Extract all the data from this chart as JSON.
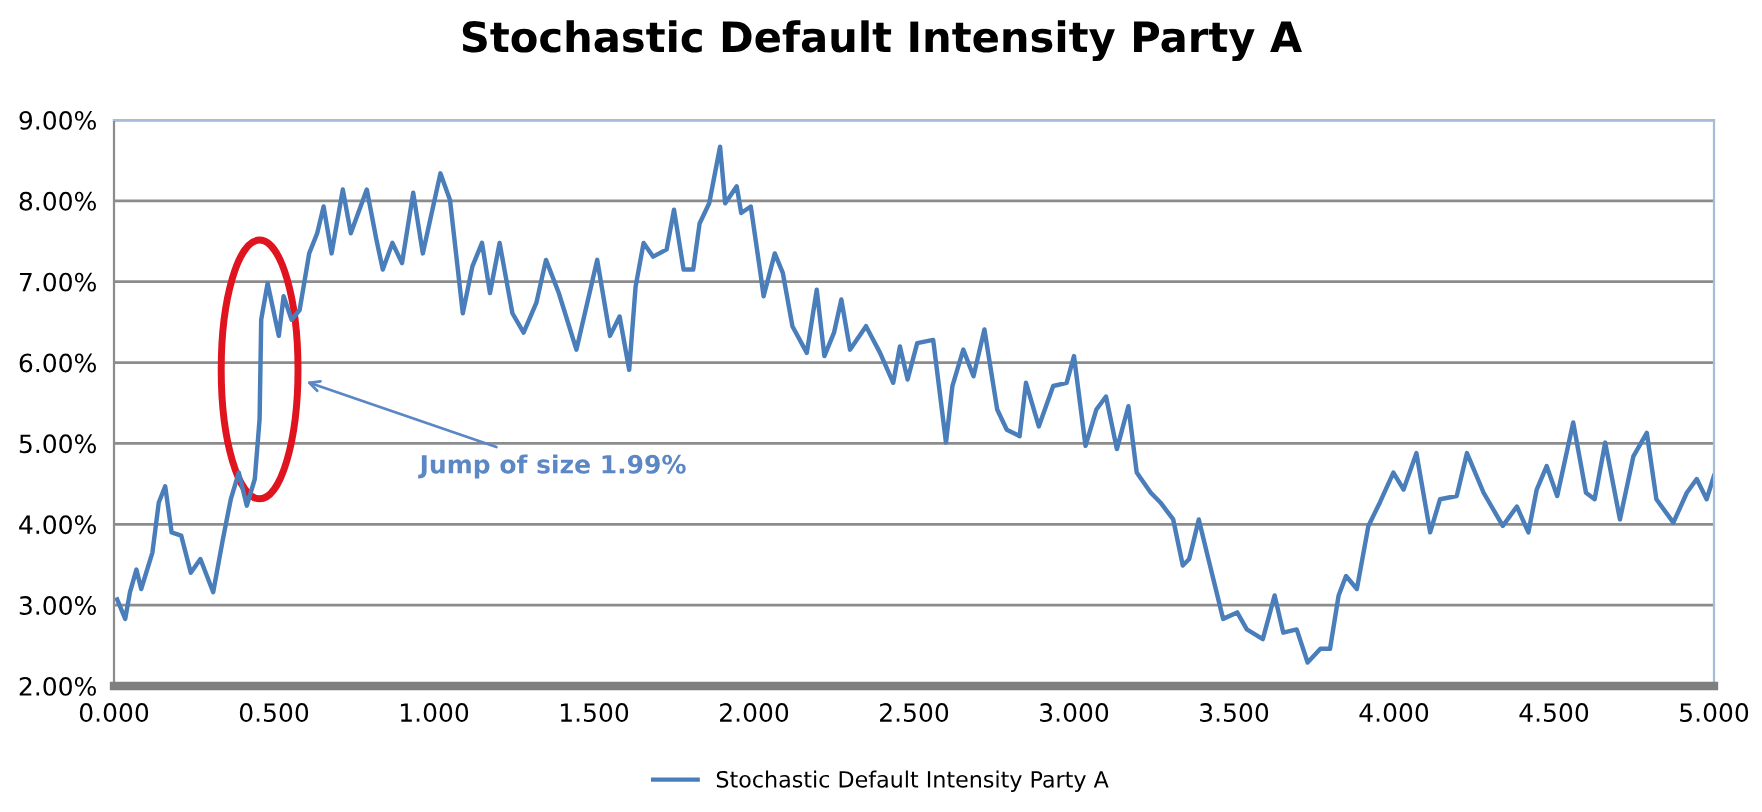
{
  "chart_data": {
    "type": "line",
    "title": "Stochastic Default Intensity Party A",
    "x": [
      0.01,
      0.035,
      0.05,
      0.07,
      0.085,
      0.12,
      0.14,
      0.16,
      0.18,
      0.21,
      0.24,
      0.27,
      0.31,
      0.34,
      0.365,
      0.39,
      0.415,
      0.44,
      0.455,
      0.46,
      0.48,
      0.515,
      0.53,
      0.555,
      0.58,
      0.61,
      0.635,
      0.655,
      0.68,
      0.715,
      0.74,
      0.79,
      0.82,
      0.84,
      0.87,
      0.9,
      0.935,
      0.965,
      1.02,
      1.05,
      1.09,
      1.12,
      1.15,
      1.175,
      1.205,
      1.245,
      1.28,
      1.32,
      1.35,
      1.39,
      1.445,
      1.51,
      1.55,
      1.58,
      1.61,
      1.63,
      1.655,
      1.685,
      1.727,
      1.75,
      1.78,
      1.81,
      1.83,
      1.86,
      1.894,
      1.91,
      1.946,
      1.96,
      1.99,
      2.02,
      2.03,
      2.065,
      2.09,
      2.12,
      2.165,
      2.196,
      2.22,
      2.25,
      2.273,
      2.3,
      2.35,
      2.394,
      2.435,
      2.456,
      2.48,
      2.51,
      2.56,
      2.6,
      2.62,
      2.654,
      2.686,
      2.72,
      2.76,
      2.79,
      2.83,
      2.85,
      2.89,
      2.935,
      2.977,
      3.0,
      3.036,
      3.07,
      3.1,
      3.134,
      3.17,
      3.196,
      3.24,
      3.27,
      3.31,
      3.34,
      3.36,
      3.39,
      3.415,
      3.466,
      3.51,
      3.54,
      3.59,
      3.627,
      3.654,
      3.696,
      3.73,
      3.77,
      3.8,
      3.827,
      3.85,
      3.884,
      3.92,
      3.956,
      3.998,
      4.03,
      4.07,
      4.113,
      4.144,
      4.196,
      4.228,
      4.28,
      4.34,
      4.384,
      4.42,
      4.446,
      4.477,
      4.51,
      4.56,
      4.6,
      4.627,
      4.66,
      4.706,
      4.748,
      4.79,
      4.82,
      4.873,
      4.915,
      4.946,
      4.977,
      5.0
    ],
    "series": [
      {
        "name": "Stochastic Default Intensity Party A",
        "color": "#4a7ebb",
        "values": [
          3.07,
          2.83,
          3.16,
          3.44,
          3.2,
          3.65,
          4.27,
          4.47,
          3.9,
          3.86,
          3.4,
          3.57,
          3.16,
          3.81,
          4.31,
          4.64,
          4.23,
          4.56,
          5.3,
          6.53,
          6.98,
          6.33,
          6.82,
          6.53,
          6.65,
          7.35,
          7.6,
          7.93,
          7.35,
          8.14,
          7.6,
          8.14,
          7.52,
          7.15,
          7.48,
          7.23,
          8.1,
          7.35,
          8.34,
          8.01,
          6.61,
          7.19,
          7.48,
          6.86,
          7.48,
          6.61,
          6.37,
          6.74,
          7.27,
          6.86,
          6.16,
          7.27,
          6.33,
          6.57,
          5.91,
          6.94,
          7.48,
          7.31,
          7.4,
          7.89,
          7.15,
          7.15,
          7.72,
          7.97,
          8.67,
          7.97,
          8.18,
          7.85,
          7.93,
          7.11,
          6.82,
          7.35,
          7.11,
          6.45,
          6.12,
          6.9,
          6.08,
          6.37,
          6.78,
          6.16,
          6.45,
          6.12,
          5.75,
          6.2,
          5.79,
          6.24,
          6.28,
          5.01,
          5.71,
          6.16,
          5.83,
          6.41,
          5.42,
          5.17,
          5.09,
          5.75,
          5.21,
          5.71,
          5.75,
          6.08,
          4.97,
          5.42,
          5.58,
          4.93,
          5.46,
          4.64,
          4.39,
          4.27,
          4.06,
          3.49,
          3.57,
          4.06,
          3.65,
          2.83,
          2.91,
          2.7,
          2.58,
          3.12,
          2.66,
          2.7,
          2.29,
          2.46,
          2.46,
          3.12,
          3.36,
          3.2,
          3.98,
          4.27,
          4.64,
          4.43,
          4.88,
          3.9,
          4.31,
          4.35,
          4.88,
          4.39,
          3.98,
          4.22,
          3.9,
          4.43,
          4.72,
          4.35,
          5.26,
          4.39,
          4.31,
          5.01,
          4.06,
          4.84,
          5.13,
          4.31,
          4.02,
          4.39,
          4.56,
          4.31,
          4.6
        ]
      }
    ],
    "xlim": [
      0,
      5
    ],
    "xticks": [
      {
        "value": 0,
        "label": "0.000"
      },
      {
        "value": 0.5,
        "label": "0.500"
      },
      {
        "value": 1,
        "label": "1.000"
      },
      {
        "value": 1.5,
        "label": "1.500"
      },
      {
        "value": 2,
        "label": "2.000"
      },
      {
        "value": 2.5,
        "label": "2.500"
      },
      {
        "value": 3,
        "label": "3.000"
      },
      {
        "value": 3.5,
        "label": "3.500"
      },
      {
        "value": 4,
        "label": "4.000"
      },
      {
        "value": 4.5,
        "label": "4.500"
      },
      {
        "value": 5,
        "label": "5.000"
      }
    ],
    "ylim": [
      2,
      9
    ],
    "yticks": [
      {
        "value": 2,
        "label": "2.00%"
      },
      {
        "value": 3,
        "label": "3.00%"
      },
      {
        "value": 4,
        "label": "4.00%"
      },
      {
        "value": 5,
        "label": "5.00%"
      },
      {
        "value": 6,
        "label": "6.00%"
      },
      {
        "value": 7,
        "label": "7.00%"
      },
      {
        "value": 8,
        "label": "8.00%"
      },
      {
        "value": 9,
        "label": "9.00%"
      }
    ],
    "grid": "y",
    "legend": "bottom",
    "marker": "none",
    "line_style": "solid",
    "annotations": [
      "Jump of size 1.99%"
    ]
  }
}
